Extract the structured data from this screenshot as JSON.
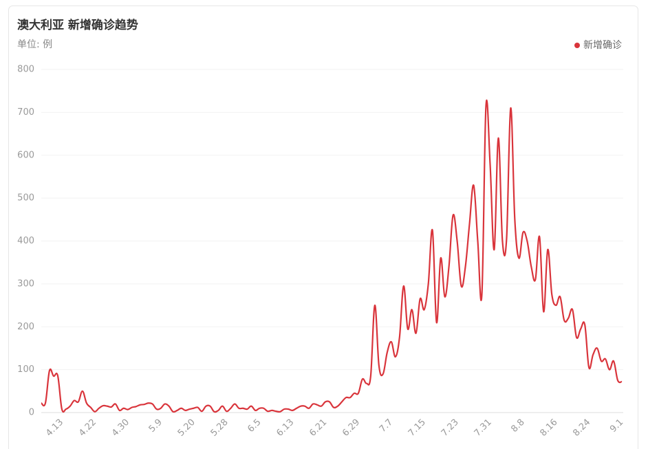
{
  "chart_data": {
    "type": "line",
    "title": "澳大利亚 新增确诊趋势",
    "subtitle": "单位: 例",
    "categories": [
      null,
      null,
      null,
      null,
      null,
      "4.13",
      null,
      null,
      null,
      null,
      null,
      null,
      null,
      "4.22",
      null,
      null,
      null,
      null,
      null,
      null,
      null,
      "4.30",
      null,
      null,
      null,
      null,
      null,
      null,
      null,
      "5.9",
      null,
      null,
      null,
      null,
      null,
      null,
      null,
      "5.20",
      null,
      null,
      null,
      null,
      null,
      null,
      null,
      "5.28",
      null,
      null,
      null,
      null,
      null,
      null,
      null,
      "6.5",
      null,
      null,
      null,
      null,
      null,
      null,
      null,
      "6.13",
      null,
      null,
      null,
      null,
      null,
      null,
      null,
      "6.21",
      null,
      null,
      null,
      null,
      null,
      null,
      null,
      "6.29",
      null,
      null,
      null,
      null,
      null,
      null,
      null,
      "7.7",
      null,
      null,
      null,
      null,
      null,
      null,
      null,
      "7.15",
      null,
      null,
      null,
      null,
      null,
      null,
      null,
      "7.23",
      null,
      null,
      null,
      null,
      null,
      null,
      null,
      "7.31",
      null,
      null,
      null,
      null,
      null,
      null,
      null,
      "8.8",
      null,
      null,
      null,
      null,
      null,
      null,
      null,
      "8.16",
      null,
      null,
      null,
      null,
      null,
      null,
      null,
      "8.24",
      null,
      null,
      null,
      null,
      null,
      null,
      null,
      "9.1"
    ],
    "series": [
      {
        "name": "新增确诊",
        "color": "#d9343b",
        "values": [
          22,
          22,
          98,
          85,
          86,
          8,
          8,
          15,
          28,
          25,
          50,
          22,
          12,
          2,
          10,
          16,
          15,
          13,
          20,
          5,
          10,
          7,
          12,
          14,
          18,
          19,
          22,
          20,
          8,
          10,
          20,
          15,
          2,
          5,
          10,
          5,
          8,
          10,
          12,
          3,
          15,
          15,
          2,
          5,
          15,
          3,
          10,
          20,
          10,
          10,
          8,
          15,
          5,
          10,
          10,
          3,
          5,
          3,
          2,
          8,
          8,
          5,
          10,
          15,
          15,
          10,
          20,
          18,
          15,
          25,
          25,
          12,
          15,
          25,
          35,
          35,
          45,
          45,
          78,
          68,
          85,
          250,
          110,
          90,
          140,
          165,
          130,
          175,
          295,
          195,
          240,
          185,
          265,
          240,
          300,
          425,
          210,
          360,
          270,
          340,
          460,
          400,
          295,
          340,
          440,
          530,
          400,
          275,
          715,
          580,
          380,
          640,
          400,
          405,
          710,
          450,
          360,
          420,
          400,
          340,
          310,
          410,
          235,
          380,
          275,
          250,
          270,
          215,
          220,
          240,
          175,
          195,
          205,
          105,
          135,
          150,
          120,
          125,
          100,
          120,
          75,
          72
        ]
      }
    ],
    "ylim": [
      0,
      800
    ],
    "yticks": [
      0,
      100,
      200,
      300,
      400,
      500,
      600,
      700,
      800
    ],
    "grid": true,
    "legend": "top-right"
  }
}
